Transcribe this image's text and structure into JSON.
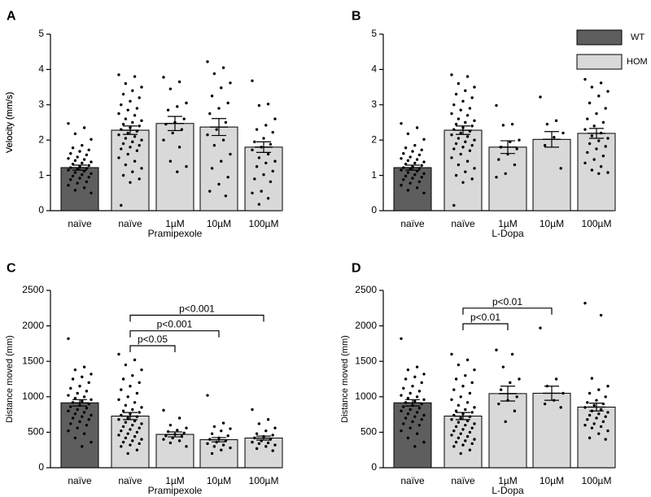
{
  "colors": {
    "wt": "#5e5e5e",
    "hom": "#d9d9d9",
    "stroke": "#000000"
  },
  "legend": {
    "wt": "WT",
    "hom": "HOM"
  },
  "chart_data": [
    {
      "panel": "A",
      "type": "bar",
      "categories": [
        "naïve",
        "naïve",
        "1µM",
        "10µM",
        "100µM"
      ],
      "group_label": "Pramipexole",
      "genotype": [
        "wt",
        "hom",
        "hom",
        "hom",
        "hom"
      ],
      "values": [
        1.22,
        2.28,
        2.47,
        2.37,
        1.8
      ],
      "errors": [
        0.07,
        0.12,
        0.2,
        0.24,
        0.15
      ],
      "points": [
        [
          2.47,
          2.35,
          2.18,
          2.02,
          1.85,
          1.78,
          1.72,
          1.68,
          1.62,
          1.58,
          1.52,
          1.48,
          1.45,
          1.42,
          1.38,
          1.35,
          1.32,
          1.28,
          1.25,
          1.22,
          1.2,
          1.18,
          1.15,
          1.12,
          1.08,
          1.05,
          1.02,
          0.98,
          0.95,
          0.92,
          0.88,
          0.82,
          0.78,
          0.72,
          0.65,
          0.58,
          0.5
        ],
        [
          3.85,
          3.8,
          3.6,
          3.5,
          3.4,
          3.3,
          3.2,
          3.1,
          3.0,
          2.9,
          2.85,
          2.75,
          2.7,
          2.6,
          2.55,
          2.5,
          2.45,
          2.4,
          2.35,
          2.3,
          2.25,
          2.2,
          2.15,
          2.1,
          2.05,
          2.0,
          1.95,
          1.9,
          1.85,
          1.8,
          1.75,
          1.7,
          1.6,
          1.5,
          1.4,
          1.3,
          1.2,
          1.1,
          1.0,
          0.9,
          0.8,
          0.15
        ],
        [
          3.78,
          3.65,
          3.45,
          3.05,
          2.95,
          2.85,
          2.6,
          2.5,
          2.45,
          2.3,
          2.2,
          2.0,
          1.8,
          1.4,
          1.25,
          1.1
        ],
        [
          4.22,
          4.05,
          3.88,
          3.62,
          3.48,
          3.25,
          3.05,
          2.9,
          2.75,
          2.5,
          2.3,
          2.15,
          2.0,
          1.85,
          1.6,
          1.4,
          1.2,
          0.95,
          0.75,
          0.55,
          0.42
        ],
        [
          3.68,
          3.02,
          2.98,
          2.6,
          2.42,
          2.3,
          2.22,
          2.05,
          1.95,
          1.88,
          1.8,
          1.72,
          1.6,
          1.5,
          1.4,
          1.35,
          1.25,
          1.12,
          1.02,
          0.9,
          0.82,
          0.55,
          0.5,
          0.35,
          0.18
        ]
      ],
      "ylabel": "Velocity (mm/s)",
      "ylim": [
        0,
        5
      ],
      "yticks": [
        "0",
        "1",
        "2",
        "3",
        "4",
        "5"
      ],
      "significance": []
    },
    {
      "panel": "B",
      "type": "bar",
      "categories": [
        "naïve",
        "naïve",
        "1µM",
        "10µM",
        "100µM"
      ],
      "group_label": "L-Dopa",
      "genotype": [
        "wt",
        "hom",
        "hom",
        "hom",
        "hom"
      ],
      "values": [
        1.22,
        2.28,
        1.8,
        2.02,
        2.19
      ],
      "errors": [
        0.07,
        0.12,
        0.18,
        0.22,
        0.14
      ],
      "points": [
        [
          2.47,
          2.35,
          2.18,
          2.02,
          1.85,
          1.78,
          1.72,
          1.68,
          1.62,
          1.58,
          1.52,
          1.48,
          1.45,
          1.42,
          1.38,
          1.35,
          1.32,
          1.28,
          1.25,
          1.22,
          1.2,
          1.18,
          1.15,
          1.12,
          1.08,
          1.05,
          1.02,
          0.98,
          0.95,
          0.92,
          0.88,
          0.82,
          0.78,
          0.72,
          0.65,
          0.58,
          0.5
        ],
        [
          3.85,
          3.8,
          3.6,
          3.5,
          3.4,
          3.3,
          3.2,
          3.1,
          3.0,
          2.9,
          2.85,
          2.75,
          2.7,
          2.6,
          2.55,
          2.5,
          2.45,
          2.4,
          2.35,
          2.3,
          2.25,
          2.2,
          2.15,
          2.1,
          2.05,
          2.0,
          1.95,
          1.9,
          1.85,
          1.8,
          1.75,
          1.7,
          1.6,
          1.5,
          1.4,
          1.3,
          1.2,
          1.1,
          1.0,
          0.9,
          0.8,
          0.15
        ],
        [
          2.98,
          2.45,
          2.42,
          2.0,
          1.95,
          1.8,
          1.75,
          1.6,
          1.45,
          1.3,
          1.05,
          0.95
        ],
        [
          3.22,
          2.55,
          2.45,
          2.2,
          2.08,
          1.85,
          1.2
        ],
        [
          3.72,
          3.62,
          3.5,
          3.38,
          3.25,
          3.05,
          2.9,
          2.75,
          2.6,
          2.5,
          2.4,
          2.3,
          2.2,
          2.12,
          2.05,
          1.98,
          1.9,
          1.82,
          1.75,
          1.65,
          1.55,
          1.45,
          1.35,
          1.25,
          1.15,
          1.08,
          1.05
        ]
      ],
      "ylabel": "Velocity (mm/s)",
      "ylim": [
        0,
        5
      ],
      "yticks": [
        "0",
        "1",
        "2",
        "3",
        "4",
        "5"
      ],
      "significance": []
    },
    {
      "panel": "C",
      "type": "bar",
      "categories": [
        "naïve",
        "naïve",
        "1µM",
        "10µM",
        "100µM"
      ],
      "group_label": "Pramipexole",
      "genotype": [
        "wt",
        "hom",
        "hom",
        "hom",
        "hom"
      ],
      "values": [
        915,
        728,
        470,
        395,
        418
      ],
      "errors": [
        45,
        50,
        35,
        30,
        28
      ],
      "points": [
        [
          1820,
          1420,
          1380,
          1320,
          1280,
          1250,
          1200,
          1150,
          1120,
          1080,
          1050,
          1020,
          1000,
          980,
          960,
          940,
          920,
          900,
          880,
          860,
          840,
          820,
          800,
          780,
          760,
          740,
          720,
          700,
          680,
          650,
          620,
          600,
          560,
          520,
          480,
          420,
          360,
          300
        ],
        [
          1600,
          1520,
          1450,
          1380,
          1300,
          1250,
          1200,
          1150,
          1100,
          1050,
          1000,
          960,
          920,
          880,
          850,
          820,
          800,
          780,
          760,
          740,
          720,
          700,
          680,
          660,
          640,
          620,
          600,
          580,
          560,
          540,
          520,
          500,
          480,
          460,
          440,
          420,
          400,
          380,
          360,
          340,
          320,
          300,
          250,
          200
        ],
        [
          810,
          700,
          600,
          560,
          530,
          510,
          490,
          470,
          450,
          440,
          420,
          400,
          380,
          350,
          300
        ],
        [
          1020,
          630,
          580,
          550,
          520,
          480,
          450,
          420,
          400,
          380,
          360,
          340,
          320,
          300,
          280,
          250,
          200
        ],
        [
          820,
          680,
          620,
          560,
          520,
          480,
          460,
          440,
          420,
          400,
          380,
          360,
          350,
          340,
          320,
          300,
          270,
          240
        ]
      ],
      "ylabel": "Distance moved (mm)",
      "ylim": [
        0,
        2500
      ],
      "yticks": [
        "0",
        "500",
        "1000",
        "1500",
        "2000",
        "2500"
      ],
      "significance": [
        {
          "from": 1,
          "to": 4,
          "level": 2150,
          "label": "p<0.001"
        },
        {
          "from": 1,
          "to": 3,
          "level": 1930,
          "label": "p<0.001"
        },
        {
          "from": 1,
          "to": 2,
          "level": 1720,
          "label": "p<0.05"
        }
      ]
    },
    {
      "panel": "D",
      "type": "bar",
      "categories": [
        "naïve",
        "naïve",
        "1µM",
        "10µM",
        "100µM"
      ],
      "group_label": "L-Dopa",
      "genotype": [
        "wt",
        "hom",
        "hom",
        "hom",
        "hom"
      ],
      "values": [
        915,
        728,
        1045,
        1050,
        855
      ],
      "errors": [
        45,
        50,
        105,
        100,
        55
      ],
      "points": [
        [
          1820,
          1420,
          1380,
          1320,
          1280,
          1250,
          1200,
          1150,
          1120,
          1080,
          1050,
          1020,
          1000,
          980,
          960,
          940,
          920,
          900,
          880,
          860,
          840,
          820,
          800,
          780,
          760,
          740,
          720,
          700,
          680,
          650,
          620,
          600,
          560,
          520,
          480,
          420,
          360,
          300
        ],
        [
          1600,
          1520,
          1450,
          1380,
          1300,
          1250,
          1200,
          1150,
          1100,
          1050,
          1000,
          960,
          920,
          880,
          850,
          820,
          800,
          780,
          760,
          740,
          720,
          700,
          680,
          660,
          640,
          620,
          600,
          580,
          560,
          540,
          520,
          500,
          480,
          460,
          440,
          420,
          400,
          380,
          360,
          340,
          320,
          300,
          250,
          200
        ],
        [
          1660,
          1600,
          1420,
          1250,
          1200,
          1100,
          1000,
          950,
          900,
          800,
          650
        ],
        [
          1970,
          1250,
          1150,
          1050,
          950,
          900,
          850
        ],
        [
          2320,
          2150,
          1260,
          1150,
          1100,
          1050,
          1000,
          950,
          920,
          900,
          880,
          850,
          820,
          800,
          780,
          760,
          740,
          720,
          700,
          680,
          650,
          620,
          600,
          580,
          560,
          520,
          480,
          420,
          400
        ]
      ],
      "ylabel": "Distance moved (mm)",
      "ylim": [
        0,
        2500
      ],
      "yticks": [
        "0",
        "500",
        "1000",
        "1500",
        "2000",
        "2500"
      ],
      "significance": [
        {
          "from": 1,
          "to": 3,
          "level": 2250,
          "label": "p<0.01"
        },
        {
          "from": 1,
          "to": 2,
          "level": 2030,
          "label": "p<0.01"
        }
      ]
    }
  ]
}
